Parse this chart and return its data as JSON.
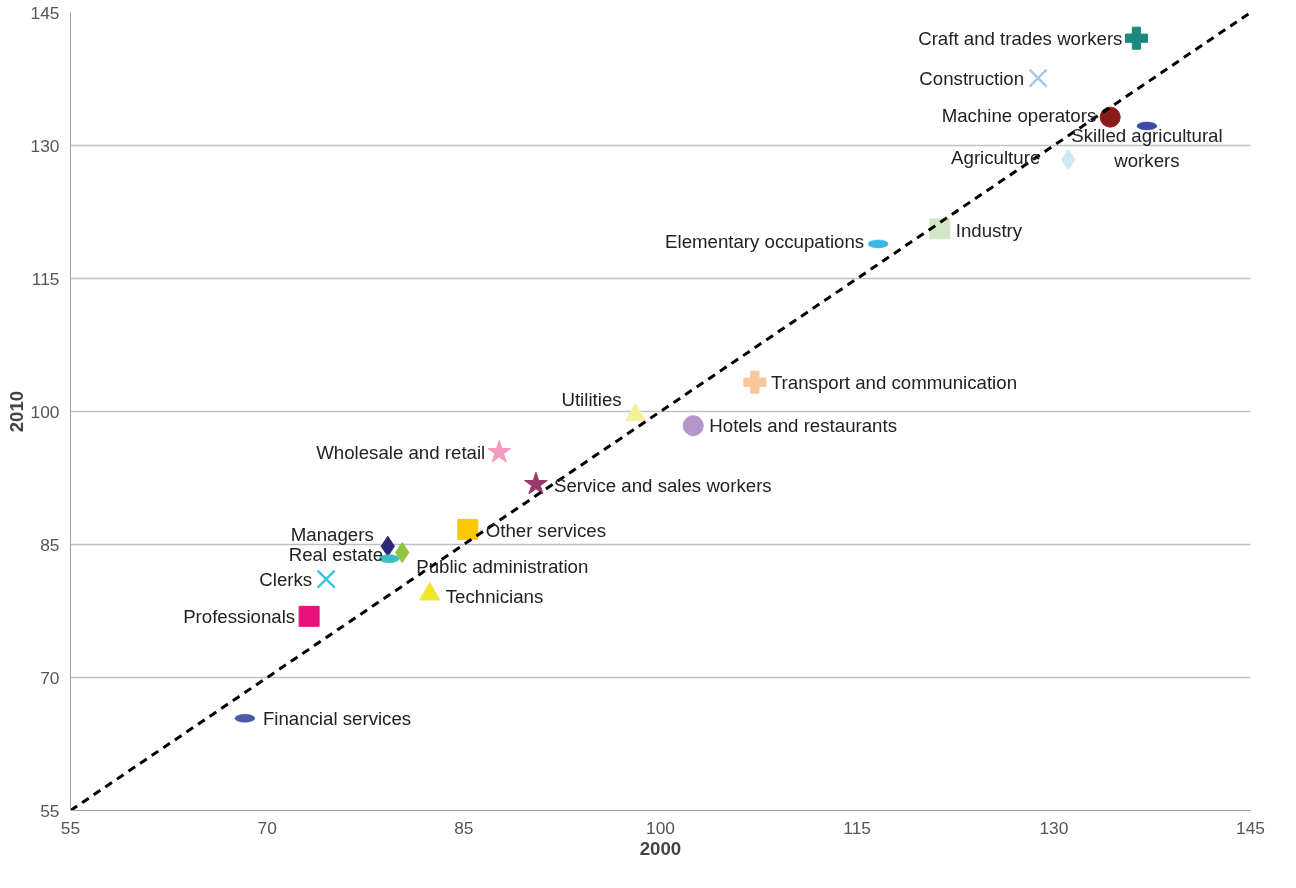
{
  "chart_data": {
    "type": "scatter",
    "xlabel": "2000",
    "ylabel": "2010",
    "xlim": [
      55,
      145
    ],
    "ylim": [
      55,
      145
    ],
    "xticks": [
      55,
      70,
      85,
      100,
      115,
      130,
      145
    ],
    "yticks": [
      55,
      70,
      85,
      100,
      115,
      130,
      145
    ],
    "grid": "y",
    "series": [
      {
        "name": "Craft and trades workers",
        "color": "#1a8a7e",
        "marker": "cross",
        "x": [
          136.3
        ],
        "values": [
          142.1
        ]
      },
      {
        "name": "Construction",
        "color": "#a6c8e6",
        "marker": "x",
        "x": [
          128.8
        ],
        "values": [
          137.6
        ]
      },
      {
        "name": "Machine operators",
        "color": "#8b1a1a",
        "marker": "circle",
        "x": [
          134.3
        ],
        "values": [
          133.2
        ]
      },
      {
        "name": "Skilled agricultural workers",
        "color": "#3a4aa8",
        "x": [
          137.1
        ],
        "values": [
          132.2
        ]
      },
      {
        "name": "Agriculture",
        "color": "#cde9f0",
        "marker": "diamond",
        "x": [
          131.1
        ],
        "values": [
          128.4
        ]
      },
      {
        "name": "Industry",
        "color": "#d2e6c6",
        "marker": "square",
        "x": [
          121.3
        ],
        "values": [
          120.6
        ]
      },
      {
        "name": "Elementary occupations",
        "color": "#3ab8e8",
        "x": [
          116.6
        ],
        "values": [
          118.9
        ]
      },
      {
        "name": "Transport and communication",
        "color": "#f8c89a",
        "marker": "cross",
        "x": [
          107.2
        ],
        "values": [
          103.3
        ]
      },
      {
        "name": "Utilities",
        "color": "#f5f09a",
        "marker": "triangle",
        "x": [
          98.1
        ],
        "values": [
          99.6
        ]
      },
      {
        "name": "Hotels and restaurants",
        "color": "#b496c8",
        "marker": "circle",
        "x": [
          102.5
        ],
        "values": [
          98.4
        ]
      },
      {
        "name": "Wholesale and retail",
        "color": "#f29ac0",
        "marker": "star",
        "x": [
          87.7
        ],
        "values": [
          95.4
        ]
      },
      {
        "name": "Service and sales workers",
        "color": "#9a3a6a",
        "marker": "star",
        "x": [
          90.5
        ],
        "values": [
          91.8
        ]
      },
      {
        "name": "Other services",
        "color": "#fcc800",
        "marker": "square",
        "x": [
          85.3
        ],
        "values": [
          86.7
        ]
      },
      {
        "name": "Managers",
        "color": "#2a2a7a",
        "marker": "diamond",
        "x": [
          79.2
        ],
        "values": [
          84.8
        ]
      },
      {
        "name": "Public administration",
        "color": "#8dc63f",
        "marker": "diamond",
        "x": [
          80.3
        ],
        "values": [
          84.1
        ]
      },
      {
        "name": "Real estate",
        "color": "#3abcc0",
        "x": [
          79.3
        ],
        "values": [
          83.4
        ]
      },
      {
        "name": "Clerks",
        "color": "#3cc0f0",
        "marker": "x",
        "x": [
          74.5
        ],
        "values": [
          81.1
        ]
      },
      {
        "name": "Technicians",
        "color": "#f0e628",
        "marker": "triangle",
        "x": [
          82.4
        ],
        "values": [
          79.4
        ]
      },
      {
        "name": "Professionals",
        "color": "#e8127a",
        "marker": "square",
        "x": [
          73.2
        ],
        "values": [
          76.9
        ]
      },
      {
        "name": "Financial services",
        "color": "#4a5aa8",
        "x": [
          68.3
        ],
        "values": [
          65.4
        ]
      },
      {
        "type": "line",
        "color": "#000000",
        "marker": "none",
        "line_style": "dashed",
        "x": [
          55,
          145
        ],
        "values": [
          55,
          145
        ]
      }
    ]
  }
}
